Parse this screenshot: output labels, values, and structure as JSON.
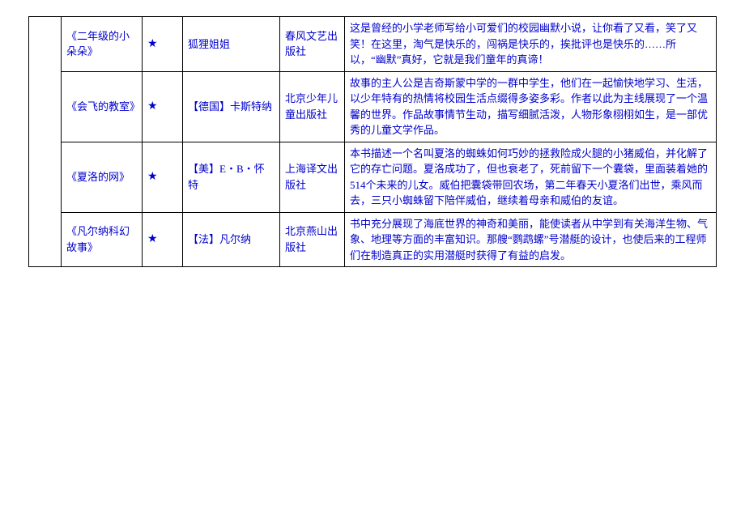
{
  "table": {
    "rows": [
      {
        "title": "《二年级的小朵朵》",
        "star": "★",
        "author": "狐狸姐姐",
        "publisher": "春风文艺出版社",
        "description": "这是曾经的小学老师写给小可爱们的校园幽默小说，让你看了又看，笑了又笑！在这里，淘气是快乐的，闯祸是快乐的，挨批评也是快乐的……所以，“幽默”真好，它就是我们童年的真谛！"
      },
      {
        "title": "《会飞的教室》",
        "star": "★",
        "author": "【德国】卡斯特纳",
        "publisher": "北京少年儿童出版社",
        "description": "故事的主人公是吉奇斯蒙中学的一群中学生，他们在一起愉快地学习、生活，以少年特有的热情将校园生活点缀得多姿多彩。作者以此为主线展现了一个温馨的世界。作品故事情节生动，描写细腻活泼，人物形象栩栩如生，是一部优秀的儿童文学作品。"
      },
      {
        "title": "《夏洛的网》",
        "star": "★",
        "author": "【美】E・B・怀特",
        "publisher": "上海译文出版社",
        "description": "本书描述一个名叫夏洛的蜘蛛如何巧妙的拯救险成火腿的小猪威伯，并化解了它的存亡问题。夏洛成功了，但也衰老了，死前留下一个囊袋，里面装着她的514个未来的儿女。威伯把囊袋带回农场，第二年春天小夏洛们出世，乘风而去，三只小蜘蛛留下陪伴威伯，继续着母亲和威伯的友谊。"
      },
      {
        "title": "《凡尔纳科幻故事》",
        "star": "★",
        "author": "【法】凡尔纳",
        "publisher": "北京燕山出版社",
        "description": "书中充分展现了海底世界的神奇和美丽，能使读者从中学到有关海洋生物、气象、地理等方面的丰富知识。那艘“鹦鹉螺”号潜艇的设计，也使后来的工程师们在制造真正的实用潜艇时获得了有益的启发。"
      }
    ]
  },
  "colors": {
    "text": "#0000cc",
    "border": "#000000",
    "background": "#ffffff"
  }
}
